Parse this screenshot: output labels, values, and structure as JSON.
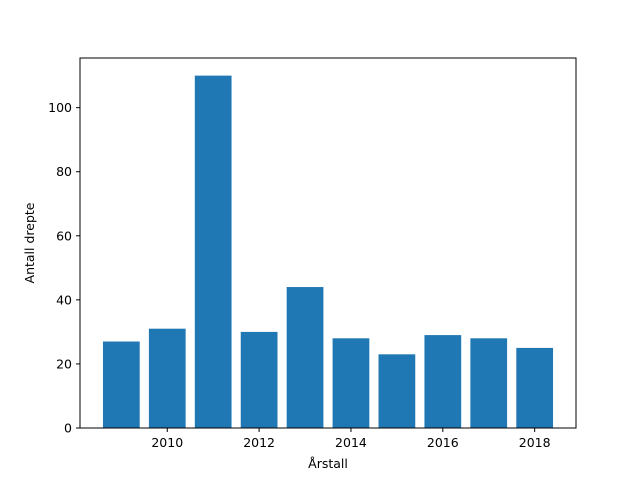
{
  "chart_data": {
    "type": "bar",
    "x": [
      2009,
      2010,
      2011,
      2012,
      2013,
      2014,
      2015,
      2016,
      2017,
      2018
    ],
    "values": [
      27,
      31,
      110,
      30,
      44,
      28,
      23,
      29,
      28,
      25
    ],
    "xlabel": "Årstall",
    "ylabel": "Antall drepte",
    "xlim": [
      2008.1,
      2018.9
    ],
    "ylim": [
      0,
      115.5
    ],
    "xticks": [
      2010,
      2012,
      2014,
      2016,
      2018
    ],
    "yticks": [
      0,
      20,
      40,
      60,
      80,
      100
    ],
    "bar_color": "#1f77b4",
    "grid": false,
    "legend": false
  }
}
